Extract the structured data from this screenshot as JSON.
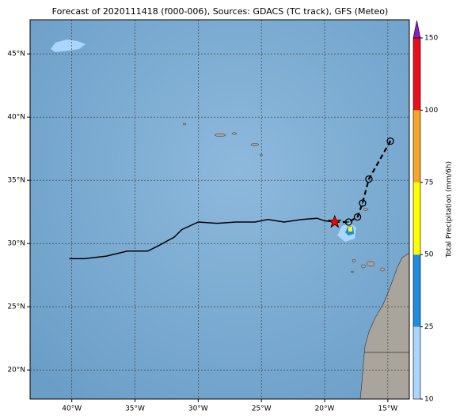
{
  "map": {
    "title": "Forecast of 2020111418 (f000-006), Sources: GDACS (TC track), GFS (Meteo)",
    "xlim": [
      -43.3,
      -13.3
    ],
    "ylim": [
      17.7,
      47.7
    ],
    "xticks": [
      {
        "value": -40,
        "label": "40°W"
      },
      {
        "value": -35,
        "label": "35°W"
      },
      {
        "value": -30,
        "label": "30°W"
      },
      {
        "value": -25,
        "label": "25°W"
      },
      {
        "value": -20,
        "label": "20°W"
      },
      {
        "value": -15,
        "label": "15°W"
      }
    ],
    "yticks": [
      {
        "value": 20,
        "label": "20°N"
      },
      {
        "value": 25,
        "label": "25°N"
      },
      {
        "value": 30,
        "label": "30°N"
      },
      {
        "value": 35,
        "label": "35°N"
      },
      {
        "value": 40,
        "label": "40°N"
      },
      {
        "value": 45,
        "label": "45°N"
      }
    ],
    "grid": true,
    "colorbar": {
      "label": "Total Precipitation (mm/6h)",
      "ticks": [
        10,
        25,
        50,
        75,
        100,
        150
      ],
      "colors": [
        "#aad6fb",
        "#1e8ce0",
        "#ffff00",
        "#f5a52a",
        "#e8101c"
      ],
      "extend_color": "#8a1cc8"
    },
    "track": {
      "color": "#000000",
      "observed": {
        "lon": [
          -40.2,
          -39.0,
          -37.3,
          -35.6,
          -34.0,
          -33.2,
          -31.9,
          -31.3,
          -30.0,
          -28.5,
          -27.0,
          -25.5,
          -24.5,
          -23.2,
          -21.8,
          -20.6,
          -20.0,
          -19.2
        ],
        "lat": [
          28.8,
          28.8,
          29.0,
          29.4,
          29.4,
          29.8,
          30.5,
          31.1,
          31.7,
          31.6,
          31.7,
          31.7,
          31.9,
          31.7,
          31.9,
          32.0,
          31.8,
          31.7
        ]
      },
      "forecast": {
        "lon": [
          -19.2,
          -18.1,
          -17.4,
          -17.0,
          -16.5,
          -14.8
        ],
        "lat": [
          31.7,
          31.7,
          32.1,
          33.2,
          35.1,
          38.1
        ]
      },
      "current_color": "#ff0000"
    }
  }
}
